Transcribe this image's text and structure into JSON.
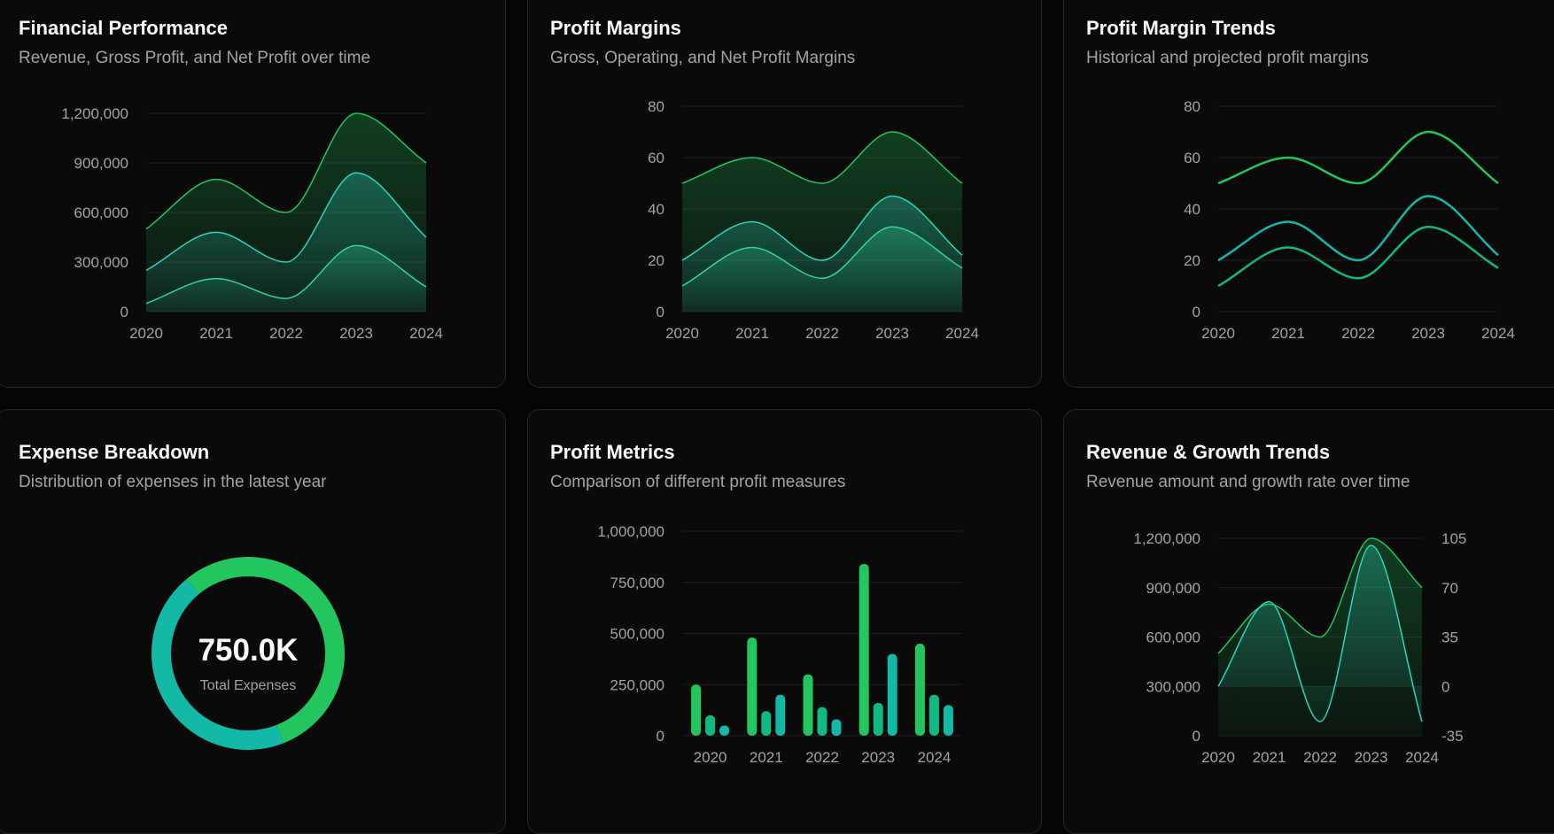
{
  "charts": {
    "financial": {
      "title": "Financial Performance",
      "subtitle": "Revenue, Gross Profit, and Net Profit over time",
      "chart_data": {
        "type": "area",
        "x": [
          "2020",
          "2021",
          "2022",
          "2023",
          "2024"
        ],
        "ylim": [
          0,
          1200000
        ],
        "yticks": [
          0,
          300000,
          600000,
          900000,
          1200000
        ],
        "ytick_labels": [
          "0",
          "300,000",
          "600,000",
          "900,000",
          "1,200,000"
        ],
        "series": [
          {
            "values": [
              500000,
              800000,
              600000,
              1200000,
              900000
            ],
            "color": "#22c55e"
          },
          {
            "values": [
              250000,
              480000,
              300000,
              840000,
              450000
            ],
            "color": "#2dd4bf"
          },
          {
            "values": [
              50000,
              200000,
              80000,
              400000,
              150000
            ],
            "color": "#34d399"
          }
        ]
      }
    },
    "margins": {
      "title": "Profit Margins",
      "subtitle": "Gross, Operating, and Net Profit Margins",
      "chart_data": {
        "type": "area",
        "x": [
          "2020",
          "2021",
          "2022",
          "2023",
          "2024"
        ],
        "ylim": [
          0,
          80
        ],
        "yticks": [
          0,
          20,
          40,
          60,
          80
        ],
        "ytick_labels": [
          "0",
          "20",
          "40",
          "60",
          "80"
        ],
        "series": [
          {
            "values": [
              50,
              60,
              50,
              70,
              50
            ],
            "color": "#22c55e"
          },
          {
            "values": [
              20,
              35,
              20,
              45,
              22
            ],
            "color": "#2dd4bf"
          },
          {
            "values": [
              10,
              25,
              13,
              33,
              17
            ],
            "color": "#34d399"
          }
        ]
      }
    },
    "trends": {
      "title": "Profit Margin Trends",
      "subtitle": "Historical and projected profit margins",
      "chart_data": {
        "type": "line",
        "x": [
          "2020",
          "2021",
          "2022",
          "2023",
          "2024"
        ],
        "ylim": [
          0,
          80
        ],
        "yticks": [
          0,
          20,
          40,
          60,
          80
        ],
        "ytick_labels": [
          "0",
          "20",
          "40",
          "60",
          "80"
        ],
        "series": [
          {
            "values": [
              50,
              60,
              50,
              70,
              50
            ],
            "color": "#22c55e"
          },
          {
            "values": [
              20,
              35,
              20,
              45,
              22
            ],
            "color": "#14b8a6"
          },
          {
            "values": [
              10,
              25,
              13,
              33,
              17
            ],
            "color": "#10b981"
          }
        ]
      }
    },
    "expense": {
      "title": "Expense Breakdown",
      "subtitle": "Distribution of expenses in the latest year",
      "center_value": "750.0K",
      "center_label": "Total Expenses",
      "chart_data": {
        "type": "pie",
        "slices": [
          {
            "value": 0.55,
            "color": "#22c55e"
          },
          {
            "value": 0.45,
            "color": "#14b8a6"
          }
        ]
      }
    },
    "metrics": {
      "title": "Profit Metrics",
      "subtitle": "Comparison of different profit measures",
      "chart_data": {
        "type": "bar",
        "categories": [
          "2020",
          "2021",
          "2022",
          "2023",
          "2024"
        ],
        "ylim": [
          0,
          1000000
        ],
        "yticks": [
          0,
          250000,
          500000,
          750000,
          1000000
        ],
        "ytick_labels": [
          "0",
          "250,000",
          "500,000",
          "750,000",
          "1,000,000"
        ],
        "series": [
          {
            "values": [
              250000,
              480000,
              300000,
              840000,
              450000
            ],
            "color": "#22c55e"
          },
          {
            "values": [
              100000,
              120000,
              140000,
              160000,
              200000
            ],
            "color": "#10b981"
          },
          {
            "values": [
              50000,
              200000,
              80000,
              400000,
              150000
            ],
            "color": "#14b8a6"
          }
        ]
      }
    },
    "revenue": {
      "title": "Revenue & Growth Trends",
      "subtitle": "Revenue amount and growth rate over time",
      "chart_data": {
        "type": "area",
        "x": [
          "2020",
          "2021",
          "2022",
          "2023",
          "2024"
        ],
        "ylim": [
          0,
          1200000
        ],
        "yticks": [
          0,
          300000,
          600000,
          900000,
          1200000
        ],
        "ytick_labels": [
          "0",
          "300,000",
          "600,000",
          "900,000",
          "1,200,000"
        ],
        "y2lim": [
          -35,
          105
        ],
        "y2ticks": [
          -35,
          0,
          35,
          70,
          105
        ],
        "y2tick_labels": [
          "-35",
          "0",
          "35",
          "70",
          "105"
        ],
        "series": [
          {
            "values": [
              500000,
              800000,
              600000,
              1200000,
              900000
            ],
            "color": "#22c55e",
            "axis": "left"
          },
          {
            "values": [
              0,
              60,
              -25,
              100,
              -25
            ],
            "color": "#2dd4bf",
            "axis": "right"
          }
        ]
      }
    }
  }
}
